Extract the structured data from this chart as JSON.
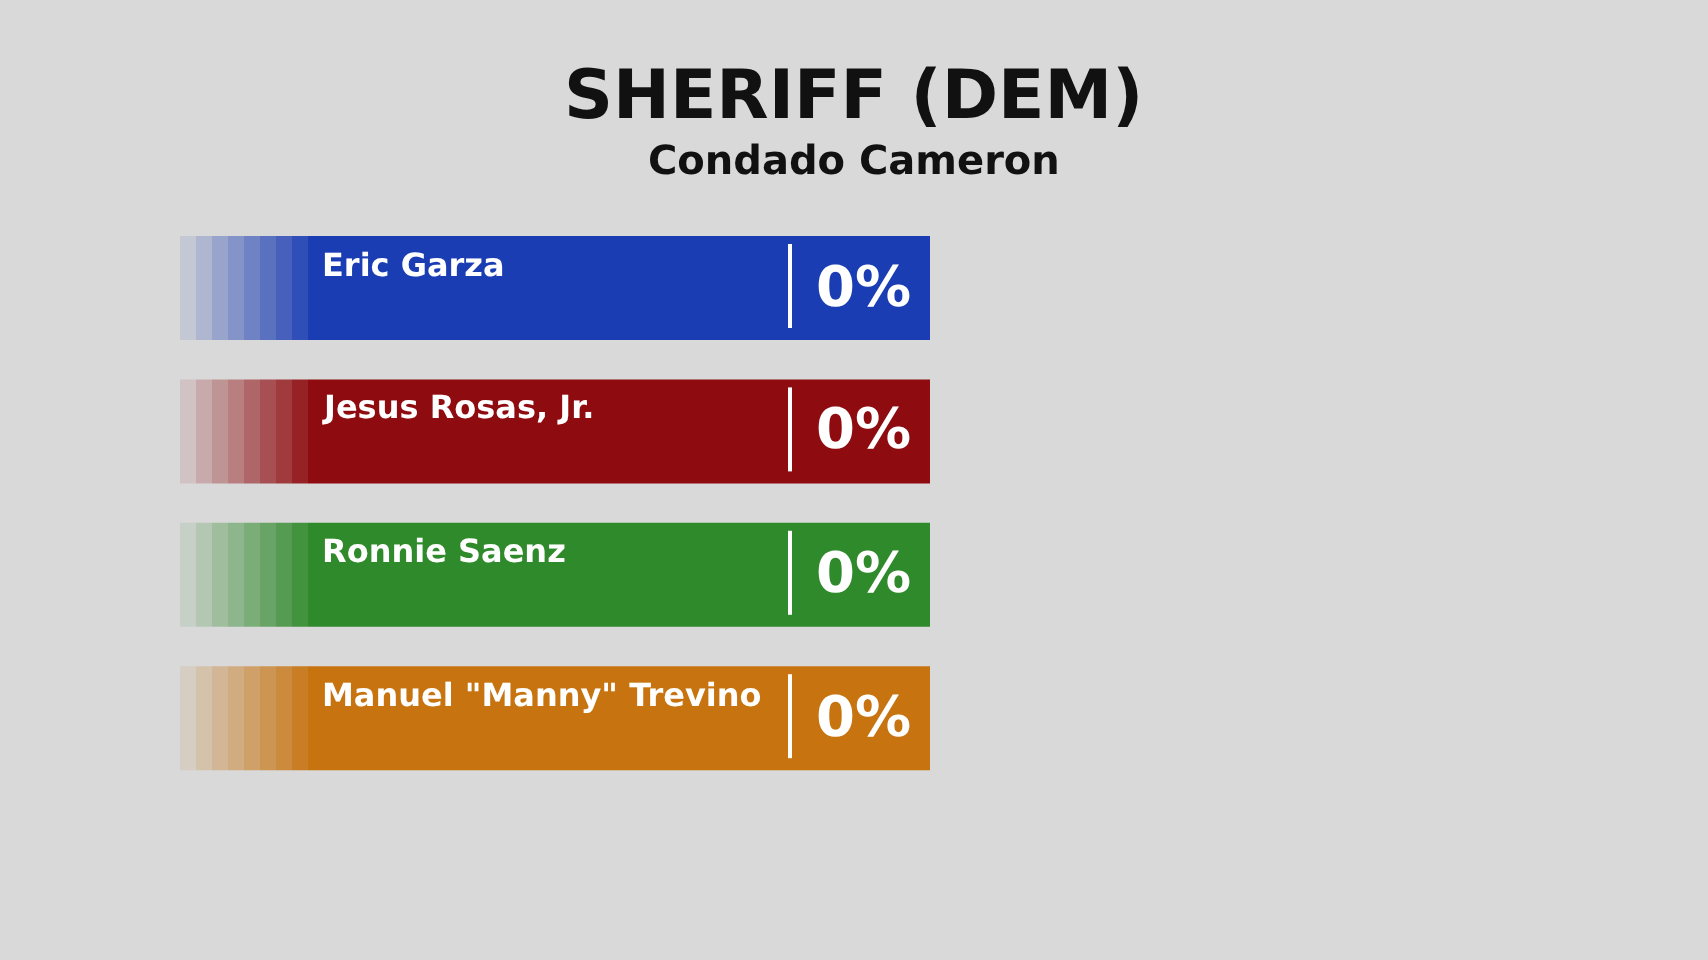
{
  "chart_data": {
    "type": "other",
    "title": "SHERIFF (DEM)",
    "subtitle": "Condado Cameron",
    "categories": [
      "Eric Garza",
      "Jesus Rosas, Jr.",
      "Ronnie Saenz",
      "Manuel \"Manny\" Trevino"
    ],
    "values": [
      0,
      0,
      0,
      0
    ],
    "value_labels": [
      "0%",
      "0%",
      "0%",
      "0%"
    ],
    "colors": [
      "#1b3db3",
      "#8e0b10",
      "#2f8a2b",
      "#c7730f"
    ]
  }
}
